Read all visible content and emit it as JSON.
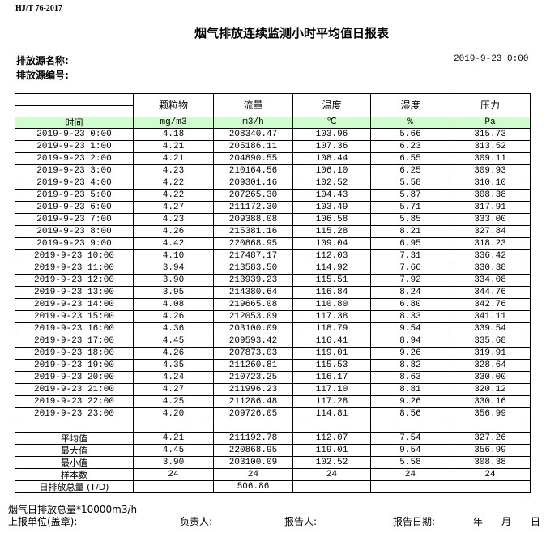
{
  "header": {
    "standard": "HJ/T  76-2017",
    "title": "烟气排放连续监测小时平均值日报表",
    "source_name_label": "排放源名称:",
    "source_no_label": "排放源编号:",
    "report_datetime": "2019-9-23 0:00"
  },
  "table": {
    "columns": [
      "颗粒物",
      "流量",
      "温度",
      "湿度",
      "压力"
    ],
    "time_label": "时间",
    "units": [
      "mg/m3",
      "m3/h",
      "℃",
      "%",
      "Pa"
    ],
    "rows": [
      [
        "2019-9-23 0:00",
        "4.18",
        "208340.47",
        "103.96",
        "5.66",
        "315.73"
      ],
      [
        "2019-9-23 1:00",
        "4.21",
        "205186.11",
        "107.36",
        "6.23",
        "313.52"
      ],
      [
        "2019-9-23 2:00",
        "4.21",
        "204890.55",
        "108.44",
        "6.55",
        "309.11"
      ],
      [
        "2019-9-23 3:00",
        "4.23",
        "210164.56",
        "106.10",
        "6.25",
        "309.93"
      ],
      [
        "2019-9-23 4:00",
        "4.22",
        "209301.16",
        "102.52",
        "5.58",
        "310.10"
      ],
      [
        "2019-9-23 5:00",
        "4.22",
        "207265.30",
        "104.43",
        "5.87",
        "308.38"
      ],
      [
        "2019-9-23 6:00",
        "4.27",
        "211172.30",
        "103.49",
        "5.71",
        "317.91"
      ],
      [
        "2019-9-23 7:00",
        "4.23",
        "209388.08",
        "106.58",
        "5.85",
        "333.00"
      ],
      [
        "2019-9-23 8:00",
        "4.26",
        "215381.16",
        "115.28",
        "8.21",
        "327.84"
      ],
      [
        "2019-9-23 9:00",
        "4.42",
        "220868.95",
        "109.04",
        "6.95",
        "318.23"
      ],
      [
        "2019-9-23 10:00",
        "4.10",
        "217487.17",
        "112.03",
        "7.31",
        "336.42"
      ],
      [
        "2019-9-23 11:00",
        "3.94",
        "213583.50",
        "114.92",
        "7.66",
        "330.38"
      ],
      [
        "2019-9-23 12:00",
        "3.90",
        "213939.23",
        "115.51",
        "7.92",
        "334.08"
      ],
      [
        "2019-9-23 13:00",
        "3.95",
        "214380.64",
        "116.84",
        "8.24",
        "344.76"
      ],
      [
        "2019-9-23 14:00",
        "4.08",
        "219665.08",
        "110.80",
        "6.80",
        "342.76"
      ],
      [
        "2019-9-23 15:00",
        "4.26",
        "212053.09",
        "117.38",
        "8.33",
        "341.11"
      ],
      [
        "2019-9-23 16:00",
        "4.36",
        "203100.09",
        "118.79",
        "9.54",
        "339.54"
      ],
      [
        "2019-9-23 17:00",
        "4.45",
        "209593.42",
        "116.41",
        "8.94",
        "335.68"
      ],
      [
        "2019-9-23 18:00",
        "4.26",
        "207873.03",
        "119.01",
        "9.26",
        "319.91"
      ],
      [
        "2019-9-23 19:00",
        "4.35",
        "211260.81",
        "115.53",
        "8.82",
        "328.64"
      ],
      [
        "2019-9-23 20:00",
        "4.24",
        "210723.25",
        "116.17",
        "8.63",
        "330.00"
      ],
      [
        "2019-9-23 21:00",
        "4.27",
        "211996.23",
        "117.10",
        "8.81",
        "320.12"
      ],
      [
        "2019-9-23 22:00",
        "4.25",
        "211286.48",
        "117.28",
        "9.26",
        "330.16"
      ],
      [
        "2019-9-23 23:00",
        "4.20",
        "209726.05",
        "114.81",
        "8.56",
        "356.99"
      ]
    ],
    "summary": [
      [
        "平均值",
        "4.21",
        "211192.78",
        "112.07",
        "7.54",
        "327.26"
      ],
      [
        "最大值",
        "4.45",
        "220868.95",
        "119.01",
        "9.54",
        "356.99"
      ],
      [
        "最小值",
        "3.90",
        "203100.09",
        "102.52",
        "5.58",
        "308.38"
      ],
      [
        "样本数",
        "24",
        "24",
        "24",
        "24",
        "24"
      ],
      [
        "日排放总量 (T/D)",
        "",
        "506.86",
        "",
        "",
        ""
      ]
    ]
  },
  "footer": {
    "note": "烟气日排放总量*10000m3/h",
    "unit_label": "上报单位(盖章):",
    "responsible_label": "负责人:",
    "reporter_label": "报告人:",
    "report_date_label": "报告日期:",
    "year": "年",
    "month": "月",
    "day": "日"
  }
}
